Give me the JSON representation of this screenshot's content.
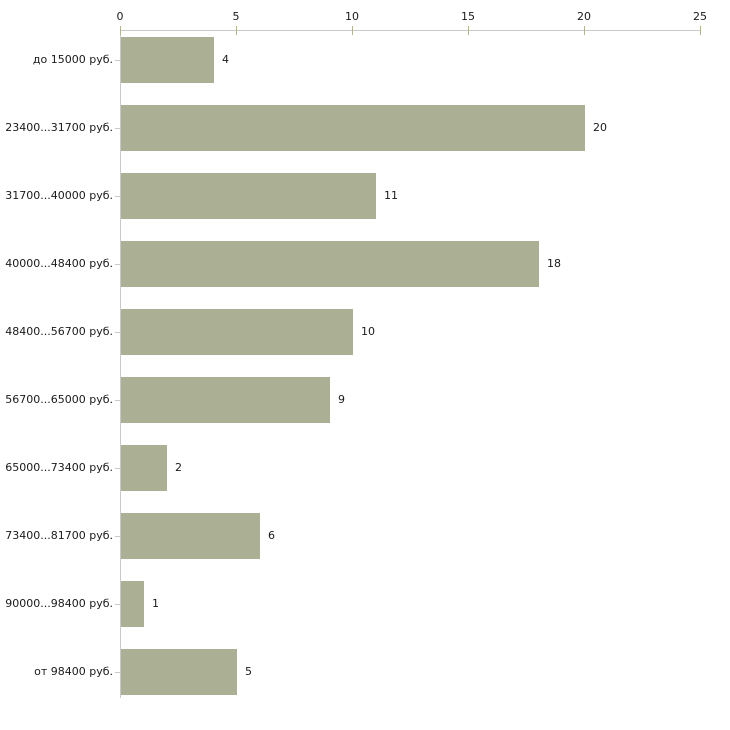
{
  "chart_data": {
    "type": "bar",
    "orientation": "horizontal",
    "title": "",
    "xlabel": "",
    "ylabel": "",
    "categories": [
      "до 15000 руб.",
      "23400...31700 руб.",
      "31700...40000 руб.",
      "40000...48400 руб.",
      "48400...56700 руб.",
      "56700...65000 руб.",
      "65000...73400 руб.",
      "73400...81700 руб.",
      "90000...98400 руб.",
      "от 98400 руб."
    ],
    "values": [
      4,
      20,
      11,
      18,
      10,
      9,
      2,
      6,
      1,
      5
    ],
    "x_ticks": [
      0,
      5,
      10,
      15,
      20,
      25
    ],
    "xlim": [
      0,
      25
    ],
    "grid": false,
    "legend": "none",
    "value_labels_shown": true,
    "colors": {
      "bar": "#abb095",
      "axis": "#c9c9c9",
      "x_tick": "#b5b584",
      "text": "#1a1a1a",
      "background": "#ffffff"
    }
  }
}
